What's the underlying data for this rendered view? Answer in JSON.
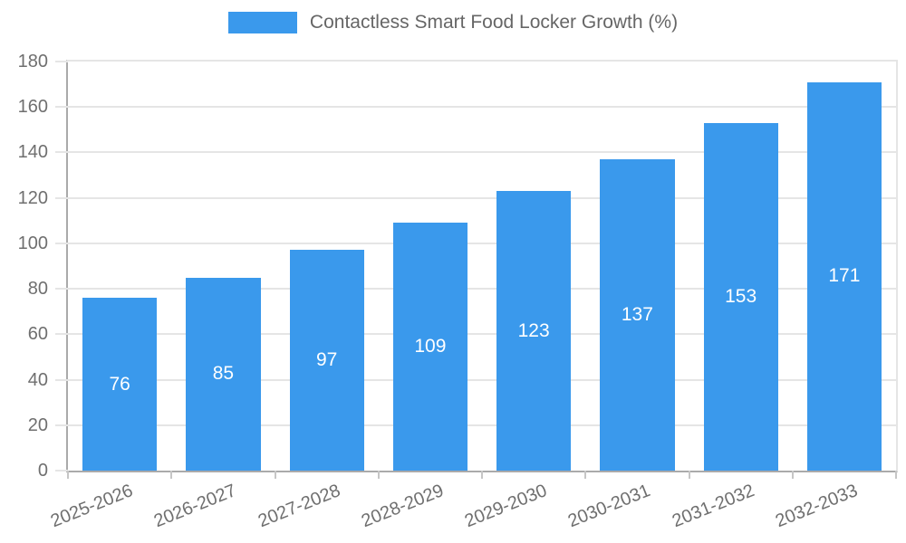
{
  "chart_data": {
    "type": "bar",
    "title": "Contactless Smart Food Locker Growth (%)",
    "legend": [
      "Contactless Smart Food Locker Growth (%)"
    ],
    "legend_position": "top",
    "categories": [
      "2025-2026",
      "2026-2027",
      "2027-2028",
      "2028-2029",
      "2029-2030",
      "2030-2031",
      "2031-2032",
      "2032-2033"
    ],
    "values": [
      76,
      85,
      97,
      109,
      123,
      137,
      153,
      171
    ],
    "xlabel": "",
    "ylabel": "",
    "ylim": [
      0,
      180
    ],
    "ytick_step": 20,
    "grid": true,
    "colors": {
      "bar": "#3a99ec",
      "value_label": "#ffffff",
      "axis_text": "#6f6f6f",
      "legend_text": "#666666",
      "gridline": "#e5e5e5",
      "axis_line": "#aaaaaa",
      "tick": "#c6c6c6",
      "background": "#ffffff"
    }
  }
}
